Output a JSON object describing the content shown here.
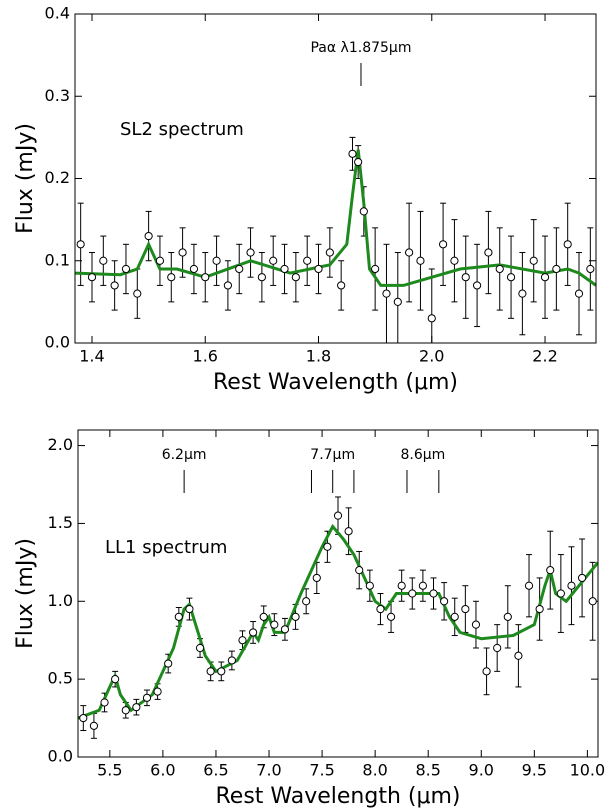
{
  "chart_data": [
    {
      "type": "scatter",
      "xlabel": "Rest Wavelength (μm)",
      "ylabel": "Flux (mJy)",
      "xlim": [
        1.37,
        2.29
      ],
      "ylim": [
        0,
        0.4
      ],
      "xticks": [
        1.4,
        1.6,
        1.8,
        {
          "value": 2,
          "label": "2.0"
        },
        2.2
      ],
      "yticks": [
        {
          "value": 0,
          "label": "0.0"
        },
        0.1,
        0.2,
        0.3,
        0.4
      ],
      "label": "SL2 spectrum",
      "annotations": [
        {
          "text": "Paα λ1.875μm",
          "lines": [
            1.875
          ]
        }
      ],
      "points": {
        "color": "#ffffff",
        "x": [
          1.38,
          1.4,
          1.42,
          1.44,
          1.46,
          1.48,
          1.5,
          1.52,
          1.54,
          1.56,
          1.58,
          1.6,
          1.62,
          1.64,
          1.66,
          1.68,
          1.7,
          1.72,
          1.74,
          1.76,
          1.78,
          1.8,
          1.82,
          1.84,
          1.86,
          1.87,
          1.88,
          1.9,
          1.92,
          1.94,
          1.96,
          1.98,
          2.0,
          2.02,
          2.04,
          2.06,
          2.08,
          2.1,
          2.12,
          2.14,
          2.16,
          2.18,
          2.2,
          2.22,
          2.24,
          2.26,
          2.28
        ],
        "values": [
          0.12,
          0.08,
          0.1,
          0.07,
          0.09,
          0.06,
          0.13,
          0.1,
          0.08,
          0.11,
          0.09,
          0.08,
          0.1,
          0.07,
          0.09,
          0.11,
          0.08,
          0.1,
          0.09,
          0.08,
          0.1,
          0.09,
          0.11,
          0.07,
          0.23,
          0.22,
          0.16,
          0.09,
          0.06,
          0.05,
          0.11,
          0.1,
          0.03,
          0.12,
          0.1,
          0.08,
          0.07,
          0.11,
          0.09,
          0.08,
          0.06,
          0.1,
          0.08,
          0.09,
          0.12,
          0.06,
          0.09
        ],
        "errors": [
          0.05,
          0.03,
          0.03,
          0.03,
          0.03,
          0.03,
          0.03,
          0.03,
          0.03,
          0.03,
          0.03,
          0.03,
          0.03,
          0.03,
          0.03,
          0.03,
          0.03,
          0.03,
          0.03,
          0.03,
          0.03,
          0.03,
          0.03,
          0.03,
          0.02,
          0.02,
          0.03,
          0.05,
          0.06,
          0.06,
          0.06,
          0.06,
          0.06,
          0.05,
          0.05,
          0.05,
          0.05,
          0.05,
          0.05,
          0.05,
          0.05,
          0.05,
          0.05,
          0.05,
          0.05,
          0.05,
          0.05
        ]
      },
      "model": {
        "color": "#1e8a1e",
        "x": [
          1.37,
          1.45,
          1.48,
          1.5,
          1.52,
          1.55,
          1.6,
          1.68,
          1.75,
          1.82,
          1.85,
          1.86,
          1.87,
          1.88,
          1.89,
          1.91,
          1.95,
          2.05,
          2.12,
          2.2,
          2.24,
          2.26,
          2.29
        ],
        "values": [
          0.085,
          0.083,
          0.09,
          0.12,
          0.09,
          0.09,
          0.08,
          0.1,
          0.085,
          0.095,
          0.12,
          0.18,
          0.235,
          0.17,
          0.09,
          0.07,
          0.07,
          0.09,
          0.095,
          0.085,
          0.09,
          0.085,
          0.07
        ]
      }
    },
    {
      "type": "scatter",
      "xlabel": "Rest Wavelength (μm)",
      "ylabel": "Flux (mJy)",
      "xlim": [
        5.2,
        10.1
      ],
      "ylim": [
        0,
        2.1
      ],
      "xticks": [
        5.5,
        {
          "value": 6,
          "label": "6.0"
        },
        6.5,
        {
          "value": 7,
          "label": "7.0"
        },
        7.5,
        {
          "value": 8,
          "label": "8.0"
        },
        8.5,
        {
          "value": 9,
          "label": "9.0"
        },
        9.5,
        {
          "value": 10,
          "label": "10.0"
        }
      ],
      "yticks": [
        {
          "value": 0,
          "label": "0.0"
        },
        0.5,
        {
          "value": 1,
          "label": "1.0"
        },
        1.5,
        {
          "value": 2,
          "label": "2.0"
        }
      ],
      "label": "LL1 spectrum",
      "annotations": [
        {
          "text": "6.2μm",
          "lines": [
            6.2
          ]
        },
        {
          "text": "7.7μm",
          "lines": [
            7.4,
            7.6,
            7.8
          ]
        },
        {
          "text": "8.6μm",
          "lines": [
            8.3,
            8.6
          ]
        }
      ],
      "points": {
        "color": "#ffffff",
        "x": [
          5.25,
          5.35,
          5.45,
          5.55,
          5.65,
          5.75,
          5.85,
          5.95,
          6.05,
          6.15,
          6.25,
          6.35,
          6.45,
          6.55,
          6.65,
          6.75,
          6.85,
          6.95,
          7.05,
          7.15,
          7.25,
          7.35,
          7.45,
          7.55,
          7.65,
          7.75,
          7.85,
          7.95,
          8.05,
          8.15,
          8.25,
          8.35,
          8.45,
          8.55,
          8.65,
          8.75,
          8.85,
          8.95,
          9.05,
          9.15,
          9.25,
          9.35,
          9.45,
          9.55,
          9.65,
          9.75,
          9.85,
          9.95,
          10.05
        ],
        "values": [
          0.25,
          0.2,
          0.35,
          0.5,
          0.3,
          0.32,
          0.38,
          0.42,
          0.6,
          0.9,
          0.95,
          0.7,
          0.55,
          0.55,
          0.62,
          0.75,
          0.8,
          0.9,
          0.85,
          0.82,
          0.9,
          1.0,
          1.15,
          1.35,
          1.55,
          1.45,
          1.2,
          1.1,
          0.95,
          0.9,
          1.1,
          1.05,
          1.1,
          1.05,
          1.0,
          0.9,
          0.95,
          0.85,
          0.55,
          0.7,
          0.9,
          0.65,
          1.1,
          0.95,
          1.2,
          1.05,
          1.1,
          1.15,
          1.0
        ],
        "errors": [
          0.08,
          0.08,
          0.06,
          0.05,
          0.05,
          0.05,
          0.05,
          0.05,
          0.06,
          0.06,
          0.07,
          0.06,
          0.06,
          0.06,
          0.06,
          0.06,
          0.07,
          0.07,
          0.07,
          0.07,
          0.08,
          0.08,
          0.1,
          0.1,
          0.12,
          0.15,
          0.12,
          0.1,
          0.1,
          0.1,
          0.1,
          0.1,
          0.1,
          0.1,
          0.12,
          0.12,
          0.15,
          0.15,
          0.15,
          0.15,
          0.2,
          0.2,
          0.2,
          0.2,
          0.25,
          0.25,
          0.25,
          0.25,
          0.25
        ]
      },
      "model": {
        "color": "#1e8a1e",
        "x": [
          5.2,
          5.4,
          5.5,
          5.55,
          5.6,
          5.7,
          5.9,
          6.1,
          6.2,
          6.25,
          6.4,
          6.5,
          6.7,
          6.85,
          6.9,
          6.95,
          7.0,
          7.05,
          7.15,
          7.3,
          7.5,
          7.6,
          7.7,
          7.8,
          7.9,
          8.0,
          8.1,
          8.2,
          8.4,
          8.6,
          8.7,
          8.8,
          9.0,
          9.3,
          9.5,
          9.6,
          9.65,
          9.7,
          9.8,
          10.1
        ],
        "values": [
          0.25,
          0.3,
          0.45,
          0.52,
          0.4,
          0.3,
          0.4,
          0.7,
          0.95,
          0.98,
          0.65,
          0.55,
          0.62,
          0.8,
          0.75,
          0.85,
          0.9,
          0.8,
          0.8,
          1.05,
          1.35,
          1.48,
          1.4,
          1.3,
          1.15,
          1.0,
          0.95,
          1.05,
          1.05,
          1.05,
          0.9,
          0.8,
          0.76,
          0.78,
          0.85,
          1.1,
          1.2,
          1.05,
          1.0,
          1.25
        ]
      }
    }
  ]
}
